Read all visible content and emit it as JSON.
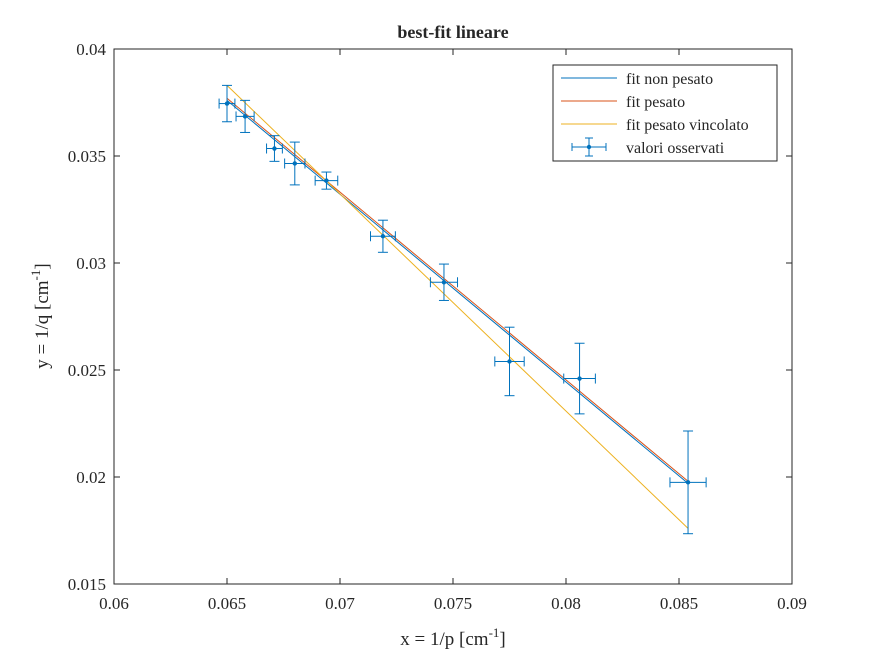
{
  "chart_data": {
    "type": "scatter",
    "title": "best-fit lineare",
    "xlabel": {
      "prefix": "x = 1/p [cm",
      "sup": "-1",
      "suffix": "]"
    },
    "ylabel": {
      "prefix": "y = 1/q [cm",
      "sup": "-1",
      "suffix": "]"
    },
    "xlim": [
      0.06,
      0.09
    ],
    "ylim": [
      0.015,
      0.04
    ],
    "xticks": [
      0.06,
      0.065,
      0.07,
      0.075,
      0.08,
      0.085,
      0.09
    ],
    "xtick_labels": [
      "0.06",
      "0.065",
      "0.07",
      "0.075",
      "0.08",
      "0.085",
      "0.09"
    ],
    "yticks": [
      0.015,
      0.02,
      0.025,
      0.03,
      0.035,
      0.04
    ],
    "ytick_labels": [
      "0.015",
      "0.02",
      "0.025",
      "0.03",
      "0.035",
      "0.04"
    ],
    "grid": false,
    "legend_position": "top-right",
    "points": [
      {
        "x": 0.065,
        "y": 0.03745,
        "xerr": 0.00035,
        "yerr": 0.00085
      },
      {
        "x": 0.0658,
        "y": 0.03685,
        "xerr": 0.0004,
        "yerr": 0.00075
      },
      {
        "x": 0.0671,
        "y": 0.03535,
        "xerr": 0.00035,
        "yerr": 0.0006
      },
      {
        "x": 0.068,
        "y": 0.03465,
        "xerr": 0.00045,
        "yerr": 0.001
      },
      {
        "x": 0.0694,
        "y": 0.03385,
        "xerr": 0.0005,
        "yerr": 0.0004
      },
      {
        "x": 0.0719,
        "y": 0.03125,
        "xerr": 0.00055,
        "yerr": 0.00075
      },
      {
        "x": 0.0746,
        "y": 0.0291,
        "xerr": 0.0006,
        "yerr": 0.00085
      },
      {
        "x": 0.0775,
        "y": 0.0254,
        "xerr": 0.00065,
        "yerr": 0.0016
      },
      {
        "x": 0.0806,
        "y": 0.0246,
        "xerr": 0.0007,
        "yerr": 0.00165
      },
      {
        "x": 0.0854,
        "y": 0.01975,
        "xerr": 0.0008,
        "yerr": 0.0024
      }
    ],
    "series": [
      {
        "name": "fit non pesato",
        "color": "#0072BD",
        "kind": "line",
        "x": [
          0.065,
          0.0854
        ],
        "y": [
          0.0376,
          0.0197
        ]
      },
      {
        "name": "fit pesato",
        "color": "#D95319",
        "kind": "line",
        "x": [
          0.065,
          0.0854
        ],
        "y": [
          0.0377,
          0.0198
        ]
      },
      {
        "name": "fit pesato vincolato",
        "color": "#EDB120",
        "kind": "line",
        "x": [
          0.065,
          0.0854
        ],
        "y": [
          0.0383,
          0.0176
        ]
      },
      {
        "name": "valori osservati",
        "color": "#0072BD",
        "kind": "errorbar"
      }
    ]
  }
}
